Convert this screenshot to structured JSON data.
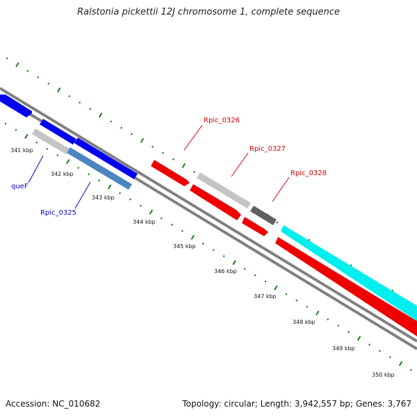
{
  "title": "Ralstonia pickettii 12J chromosome 1, complete sequence",
  "footer": {
    "accession": "Accession: NC_010682",
    "summary": "Topology: circular; Length: 3,942,557 bp; Genes: 3,767"
  },
  "colors": {
    "backbone": "#808080",
    "tick": "#1a7a1a",
    "forward_label": "#d40000",
    "reverse_label": "#0000cc",
    "blue": "#0000ee",
    "steelblue": "#4a86c0",
    "lightgray": "#c4c4c4",
    "darkgray": "#606060",
    "red": "#ee0000",
    "cyan": "#00eeee"
  },
  "ticks": [
    {
      "label": "341 kbp"
    },
    {
      "label": "342 kbp"
    },
    {
      "label": "343 kbp"
    },
    {
      "label": "344 kbp"
    },
    {
      "label": "345 kbp"
    },
    {
      "label": "346 kbp"
    },
    {
      "label": "347 kbp"
    },
    {
      "label": "348 kbp"
    },
    {
      "label": "349 kbp"
    },
    {
      "label": "350 kbp"
    }
  ],
  "gene_labels": [
    {
      "name": "Rpic_0326",
      "strand": "forward"
    },
    {
      "name": "Rpic_0327",
      "strand": "forward"
    },
    {
      "name": "Rpic_0328",
      "strand": "forward"
    },
    {
      "name": "queF",
      "strand": "reverse"
    },
    {
      "name": "Rpic_0325",
      "strand": "reverse"
    }
  ]
}
